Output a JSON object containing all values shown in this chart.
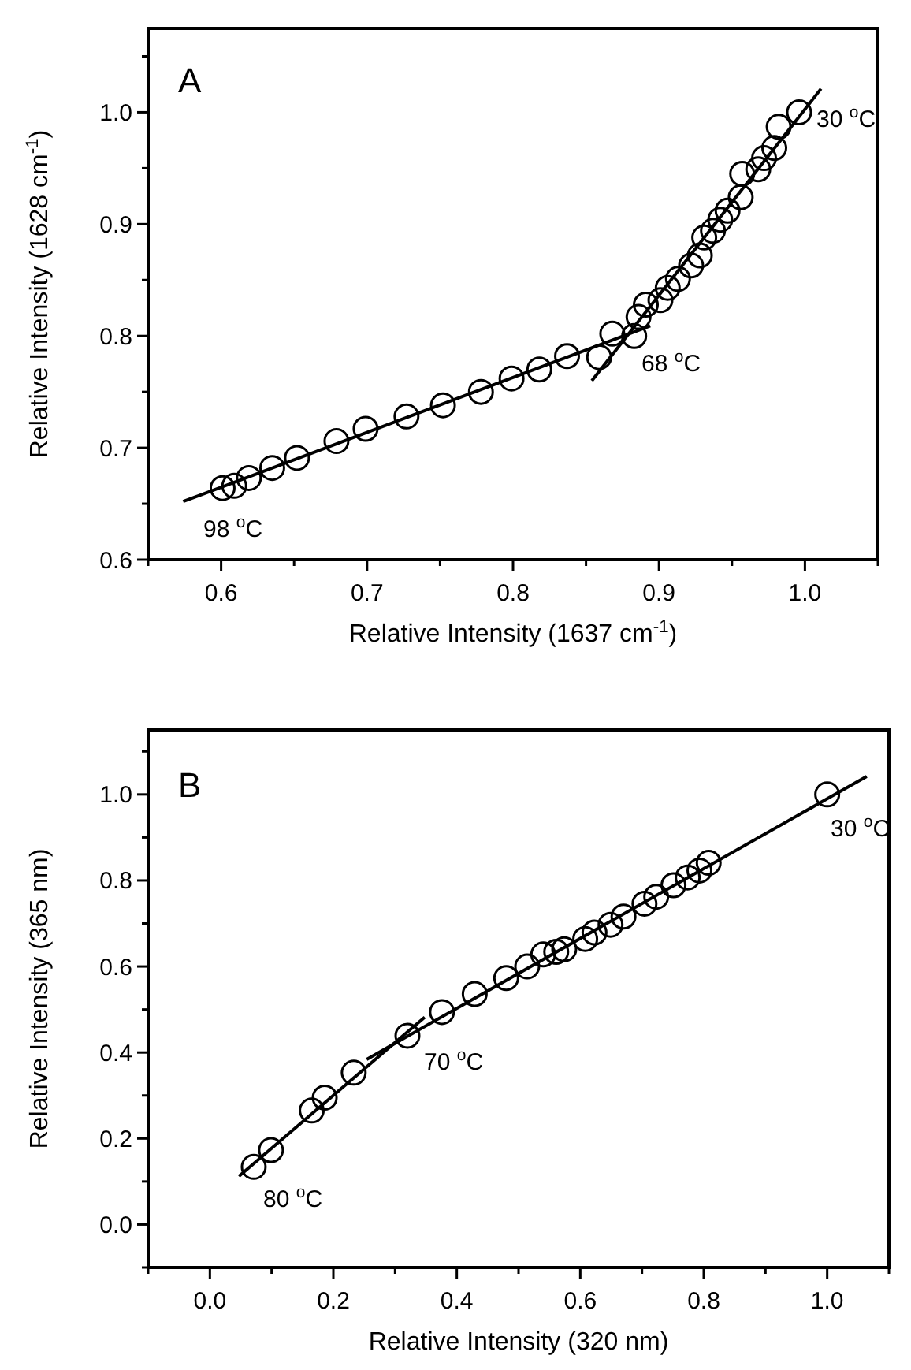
{
  "chart_data": [
    {
      "type": "scatter",
      "xlabel": "Relative Intensity (1637 cm$^{-1}$)",
      "ylabel": "Relative Intensity (1628 cm$^{-1}$)",
      "xlim": [
        0.55,
        1.05
      ],
      "ylim": [
        0.6,
        1.075
      ],
      "xticks": [
        {
          "value": 0.55,
          "label": null
        },
        0.6,
        {
          "value": 0.65,
          "label": null
        },
        0.7,
        {
          "value": 0.75,
          "label": null
        },
        0.8,
        {
          "value": 0.85,
          "label": null
        },
        0.9,
        {
          "value": 0.95,
          "label": null
        },
        {
          "value": 1.0,
          "label": "1.0"
        },
        {
          "value": 1.05,
          "label": null
        }
      ],
      "yticks": [
        0.6,
        {
          "value": 0.65,
          "label": null
        },
        0.7,
        {
          "value": 0.75,
          "label": null
        },
        0.8,
        {
          "value": 0.85,
          "label": null
        },
        0.9,
        {
          "value": 0.95,
          "label": null
        },
        {
          "value": 1.0,
          "label": "1.0"
        },
        {
          "value": 1.05,
          "label": null
        }
      ],
      "grid": false,
      "series": [
        {
          "marker": "circle",
          "color": "#000000",
          "x": [
            0.601,
            0.609,
            0.619,
            0.635,
            0.652,
            0.679,
            0.699,
            0.727,
            0.752,
            0.778,
            0.799,
            0.818,
            0.837,
            0.859,
            0.868,
            0.883,
            0.886,
            0.891,
            0.901,
            0.906,
            0.913,
            0.922,
            0.928,
            0.931,
            0.937,
            0.942,
            0.947,
            0.956,
            0.957,
            0.968,
            0.972,
            0.979,
            0.982,
            0.996
          ],
          "values": [
            0.664,
            0.666,
            0.673,
            0.682,
            0.691,
            0.706,
            0.717,
            0.728,
            0.738,
            0.75,
            0.762,
            0.77,
            0.782,
            0.781,
            0.802,
            0.8,
            0.817,
            0.828,
            0.832,
            0.843,
            0.851,
            0.863,
            0.872,
            0.888,
            0.894,
            0.904,
            0.912,
            0.924,
            0.945,
            0.949,
            0.959,
            0.968,
            0.987,
            1.0
          ]
        },
        {
          "type": "line",
          "marker": "none",
          "color": "#000000",
          "x": [
            0.574,
            0.894
          ],
          "values": [
            0.652,
            0.809
          ]
        },
        {
          "type": "line",
          "marker": "none",
          "color": "#000000",
          "x": [
            0.854,
            1.011
          ],
          "values": [
            0.76,
            1.021
          ]
        }
      ],
      "annotations": [
        "A",
        "30 $^{o}$C",
        "68 $^{o}$C",
        "98 $^{o}$C"
      ]
    },
    {
      "type": "scatter",
      "xlabel": "Relative Intensity (320 nm)",
      "ylabel": "Relative Intensity (365 nm)",
      "xlim": [
        -0.1,
        1.1
      ],
      "ylim": [
        -0.1,
        1.15
      ],
      "xticks": [
        {
          "value": -0.1,
          "label": null
        },
        {
          "value": 0.0,
          "label": "0.0"
        },
        {
          "value": 0.1,
          "label": null
        },
        0.2,
        {
          "value": 0.3,
          "label": null
        },
        0.4,
        {
          "value": 0.5,
          "label": null
        },
        0.6,
        {
          "value": 0.7,
          "label": null
        },
        0.8,
        {
          "value": 0.9,
          "label": null
        },
        {
          "value": 1.0,
          "label": "1.0"
        },
        {
          "value": 1.1,
          "label": null
        }
      ],
      "yticks": [
        {
          "value": -0.1,
          "label": null
        },
        {
          "value": 0.0,
          "label": "0.0"
        },
        {
          "value": 0.1,
          "label": null
        },
        0.2,
        {
          "value": 0.3,
          "label": null
        },
        0.4,
        {
          "value": 0.5,
          "label": null
        },
        0.6,
        {
          "value": 0.7,
          "label": null
        },
        0.8,
        {
          "value": 0.9,
          "label": null
        },
        {
          "value": 1.0,
          "label": "1.0"
        },
        {
          "value": 1.1,
          "label": null
        }
      ],
      "grid": false,
      "series": [
        {
          "marker": "circle",
          "color": "#000000",
          "x": [
            0.071,
            0.099,
            0.165,
            0.186,
            0.233,
            0.32,
            0.376,
            0.429,
            0.48,
            0.514,
            0.54,
            0.561,
            0.574,
            0.608,
            0.623,
            0.649,
            0.67,
            0.704,
            0.723,
            0.751,
            0.774,
            0.793,
            0.808,
            1.0
          ],
          "values": [
            0.134,
            0.173,
            0.265,
            0.295,
            0.353,
            0.439,
            0.494,
            0.536,
            0.573,
            0.6,
            0.628,
            0.634,
            0.64,
            0.664,
            0.679,
            0.697,
            0.716,
            0.746,
            0.762,
            0.789,
            0.807,
            0.823,
            0.841,
            1.0
          ]
        },
        {
          "type": "line",
          "marker": "none",
          "color": "#000000",
          "x": [
            0.047,
            0.348
          ],
          "values": [
            0.112,
            0.482
          ]
        },
        {
          "type": "line",
          "marker": "none",
          "color": "#000000",
          "x": [
            0.254,
            1.064
          ],
          "values": [
            0.384,
            1.042
          ]
        }
      ],
      "annotations": [
        "B",
        "30 $^{o}$C",
        "70 $^{o}$C",
        "80 $^{o}$C"
      ]
    }
  ]
}
